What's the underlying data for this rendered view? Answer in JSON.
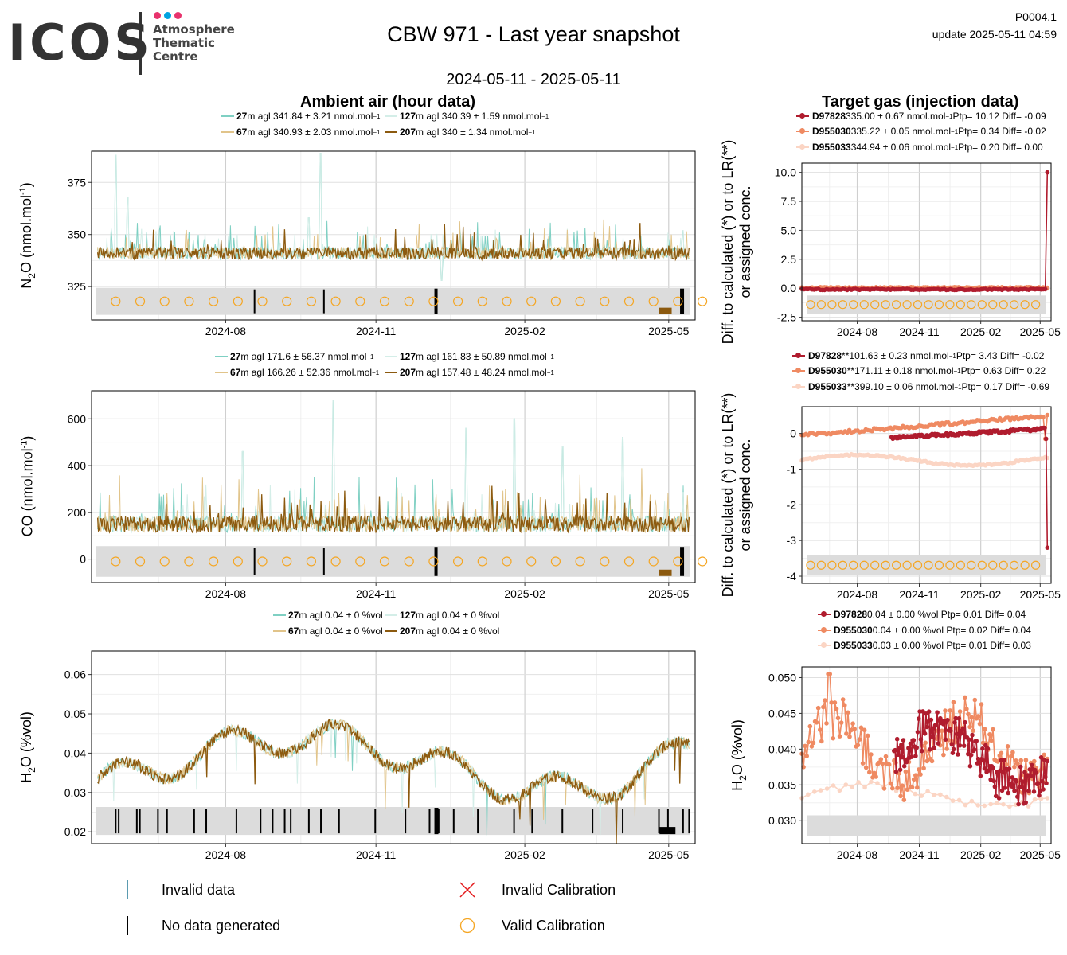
{
  "header": {
    "logo_text": "ICOS",
    "logo_sub_1": "Atmosphere",
    "logo_sub_2": "Thematic",
    "logo_sub_3": "Centre",
    "logo_dot_colors": [
      "#e8336d",
      "#00a3e0",
      "#e8336d"
    ],
    "title": "CBW 971 - Last year snapshot",
    "date_range": "2024-05-11 - 2025-05-11",
    "code": "P0004.1",
    "update": "update  2025-05-11 04:59"
  },
  "sections": {
    "ambient_title": "Ambient air (hour data)",
    "target_title": "Target gas (injection data)"
  },
  "colors": {
    "m27": "#7fd0c3",
    "m67": "#e1c48a",
    "m127": "#d4eee8",
    "m207": "#8c5a0f",
    "D97828": "#b01c2e",
    "D955030": "#ef8a62",
    "D955033": "#fbd5c4",
    "valid_calibration": "#f5a623",
    "invalid_calibration": "#e41a1c",
    "flag_band": "#dcdcdc"
  },
  "chart_data": [
    {
      "id": "n2o-ambient",
      "type": "line",
      "ylabel_main": "N",
      "ylabel_sub": "2",
      "ylabel_rest": "O (nmol.mol",
      "ylabel_sup": "-1",
      "ylabel_end": ")",
      "ylim": [
        309,
        390
      ],
      "yticks": [
        325,
        350,
        375
      ],
      "base": 341,
      "noise": 3,
      "spikes": [
        [
          0.04,
          388
        ],
        [
          0.06,
          368
        ],
        [
          0.36,
          358
        ],
        [
          0.38,
          389
        ],
        [
          0.58,
          328
        ],
        [
          0.98,
          352
        ]
      ],
      "legend": [
        {
          "height": "27",
          "text": "m agl 341.84 ± 3.21 nmol.mol",
          "sup": "−1",
          "color_key": "m27"
        },
        {
          "height": "127",
          "text": "m agl 340.39 ± 1.59 nmol.mol",
          "sup": "−1",
          "color_key": "m127"
        },
        {
          "height": "67",
          "text": "m agl 340.93 ± 2.03 nmol.mol",
          "sup": "−1",
          "color_key": "m67"
        },
        {
          "height": "207",
          "text": "m agl 340 ± 1.34 nmol.mol",
          "sup": "−1",
          "color_key": "m207"
        }
      ]
    },
    {
      "id": "co-ambient",
      "type": "line",
      "ylabel_main": "CO (nmol.mol",
      "ylabel_sup": "-1",
      "ylabel_end": ")",
      "ylim": [
        -100,
        720
      ],
      "yticks": [
        0,
        200,
        400,
        600
      ],
      "base": 150,
      "noise": 35,
      "spikes": [
        [
          0.4,
          680
        ],
        [
          0.7,
          600
        ],
        [
          0.88,
          520
        ],
        [
          0.62,
          560
        ],
        [
          0.25,
          460
        ],
        [
          0.78,
          480
        ]
      ],
      "legend": [
        {
          "height": "27",
          "text": "m agl 171.6 ± 56.37 nmol.mol",
          "sup": "−1",
          "color_key": "m27"
        },
        {
          "height": "127",
          "text": "m agl 161.83 ± 50.89 nmol.mol",
          "sup": "−1",
          "color_key": "m127"
        },
        {
          "height": "67",
          "text": "m agl 166.26 ± 52.36 nmol.mol",
          "sup": "−1",
          "color_key": "m67"
        },
        {
          "height": "207",
          "text": "m agl 157.48 ± 48.24 nmol.mol",
          "sup": "−1",
          "color_key": "m207"
        }
      ]
    },
    {
      "id": "h2o-ambient",
      "type": "line",
      "ylabel_main": "H",
      "ylabel_sub": "2",
      "ylabel_rest": "O (%vol)",
      "ylim": [
        0.017,
        0.066
      ],
      "yticks": [
        0.02,
        0.03,
        0.04,
        0.05,
        0.06
      ],
      "legend": [
        {
          "height": "27",
          "text": "m agl 0.04 ± 0 %vol",
          "color_key": "m27"
        },
        {
          "height": "127",
          "text": "m agl 0.04 ± 0 %vol",
          "color_key": "m127"
        },
        {
          "height": "67",
          "text": "m agl 0.04 ± 0 %vol",
          "color_key": "m67"
        },
        {
          "height": "207",
          "text": "m agl 0.04 ± 0 %vol",
          "color_key": "m207"
        }
      ]
    },
    {
      "id": "n2o-target",
      "type": "line",
      "ylabel_line1": "Diff. to calculated (*) or to LR(**)",
      "ylabel_line2": "or assigned conc.",
      "ylim": [
        -2.8,
        10.8
      ],
      "yticks": [
        -2.5,
        0.0,
        2.5,
        5.0,
        7.5,
        10.0
      ],
      "ytick_labels": [
        "-2.5",
        "0.0",
        "2.5",
        "5.0",
        "7.5",
        "10.0"
      ],
      "legend": [
        {
          "name": "D97828",
          "text": " 335.00 ± 0.67 nmol.mol",
          "sup": "−1",
          "tail": " Ptp= 10.12 Diff= -0.09",
          "color_key": "D97828"
        },
        {
          "name": "D955030",
          "text": " 335.22 ± 0.05 nmol.mol",
          "sup": "−1",
          "tail": " Ptp= 0.34 Diff= -0.02",
          "color_key": "D955030"
        },
        {
          "name": "D955033",
          "text": " 344.94 ± 0.06 nmol.mol",
          "sup": "−1",
          "tail": " Ptp= 0.20 Diff= 0.00",
          "color_key": "D955033"
        }
      ]
    },
    {
      "id": "co-target",
      "type": "line",
      "ylabel_line1": "Diff. to calculated (*) or to LR(**)",
      "ylabel_line2": "or assigned conc.",
      "ylim": [
        -4.2,
        0.75
      ],
      "yticks": [
        -4,
        -3,
        -2,
        -1,
        0
      ],
      "ytick_labels": [
        "-4",
        "-3",
        "-2",
        "-1",
        "0"
      ],
      "legend": [
        {
          "name": "D97828",
          "star": "**",
          "text": " 101.63 ± 0.23 nmol.mol",
          "sup": "−1",
          "tail": " Ptp= 3.43 Diff= -0.02",
          "color_key": "D97828"
        },
        {
          "name": "D955030",
          "star": "**",
          "text": " 171.11 ± 0.18 nmol.mol",
          "sup": "−1",
          "tail": " Ptp= 0.63 Diff= 0.22",
          "color_key": "D955030"
        },
        {
          "name": "D955033",
          "star": "**",
          "text": " 399.10 ± 0.06 nmol.mol",
          "sup": "−1",
          "tail": " Ptp= 0.17 Diff= -0.69",
          "color_key": "D955033"
        }
      ]
    },
    {
      "id": "h2o-target",
      "type": "line",
      "ylabel_main": "H",
      "ylabel_sub": "2",
      "ylabel_rest": "O (%vol)",
      "ylim": [
        0.0268,
        0.0515
      ],
      "yticks": [
        0.03,
        0.035,
        0.04,
        0.045,
        0.05
      ],
      "ytick_labels": [
        "0.030",
        "0.035",
        "0.040",
        "0.045",
        "0.050"
      ],
      "legend": [
        {
          "name": "D97828",
          "text": " 0.04 ± 0.00 %vol Ptp= 0.01 Diff= 0.04",
          "color_key": "D97828"
        },
        {
          "name": "D955030",
          "text": " 0.04 ± 0.00 %vol Ptp= 0.02 Diff= 0.04",
          "color_key": "D955030"
        },
        {
          "name": "D955033",
          "text": " 0.03 ± 0.00 %vol Ptp= 0.01 Diff= 0.03",
          "color_key": "D955033"
        }
      ]
    }
  ],
  "x_axis": {
    "start": "2024-05-11",
    "end": "2025-05-11",
    "ticks": [
      "2024-08",
      "2024-11",
      "2025-02",
      "2025-05"
    ],
    "tick_fracs": [
      0.2222,
      0.4712,
      0.7178,
      0.9562
    ]
  },
  "bottom_legend": {
    "invalid_data": "Invalid data",
    "no_data": "No data generated",
    "invalid_calibration": "Invalid Calibration",
    "valid_calibration": "Valid Calibration"
  }
}
